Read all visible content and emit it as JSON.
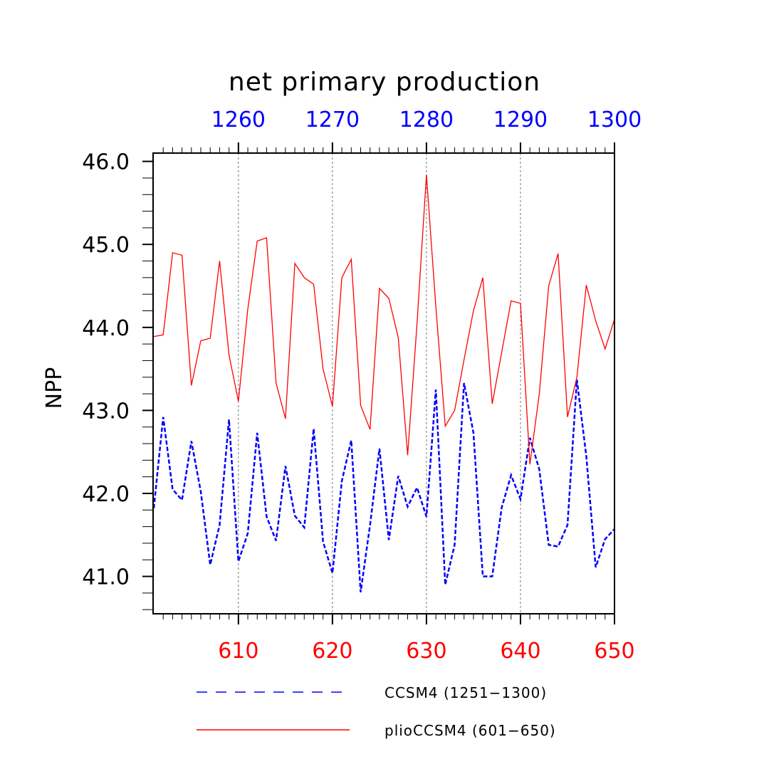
{
  "chart_data": {
    "type": "line",
    "title": "net primary production",
    "ylabel": "NPP",
    "ylim": [
      40.55,
      46.1
    ],
    "yticks": [
      41.0,
      42.0,
      43.0,
      44.0,
      45.0,
      46.0
    ],
    "ytick_labels": [
      "41.0",
      "42.0",
      "43.0",
      "44.0",
      "45.0",
      "46.0"
    ],
    "x_bottom": {
      "range": [
        601,
        650
      ],
      "ticks": [
        610,
        620,
        630,
        640,
        650
      ],
      "tick_labels": [
        "610",
        "620",
        "630",
        "640",
        "650"
      ],
      "color": "#ff0000"
    },
    "x_top": {
      "range": [
        1251,
        1300
      ],
      "ticks": [
        1260,
        1270,
        1280,
        1290,
        1300
      ],
      "tick_labels": [
        "1260",
        "1270",
        "1280",
        "1290",
        "1300"
      ],
      "color": "#0000ff"
    },
    "vertical_gridlines_at": [
      610,
      620,
      630,
      640
    ],
    "legend_placement": "bottom",
    "series": [
      {
        "name": "CCSM4 (1251−1300)",
        "axis": "top",
        "color": "#0000ff",
        "dash": "dashed",
        "x": [
          1251,
          1252,
          1253,
          1254,
          1255,
          1256,
          1257,
          1258,
          1259,
          1260,
          1261,
          1262,
          1263,
          1264,
          1265,
          1266,
          1267,
          1268,
          1269,
          1270,
          1271,
          1272,
          1273,
          1274,
          1275,
          1276,
          1277,
          1278,
          1279,
          1280,
          1281,
          1282,
          1283,
          1284,
          1285,
          1286,
          1287,
          1288,
          1289,
          1290,
          1291,
          1292,
          1293,
          1294,
          1295,
          1296,
          1297,
          1298,
          1299,
          1300
        ],
        "values": [
          41.82,
          42.92,
          42.05,
          41.92,
          42.63,
          42.02,
          41.14,
          41.62,
          42.89,
          41.18,
          41.52,
          42.73,
          41.72,
          41.43,
          42.33,
          41.73,
          41.59,
          42.78,
          41.42,
          41.04,
          42.15,
          42.64,
          40.81,
          41.62,
          42.54,
          41.44,
          42.21,
          41.84,
          42.07,
          41.72,
          43.25,
          40.9,
          41.38,
          43.33,
          42.73,
          41.0,
          41.0,
          41.83,
          42.22,
          41.93,
          42.67,
          42.29,
          41.38,
          41.36,
          41.62,
          43.37,
          42.45,
          41.11,
          41.45,
          41.57
        ]
      },
      {
        "name": "plioCCSM4 (601−650)",
        "axis": "bottom",
        "color": "#ff0000",
        "dash": "solid",
        "x": [
          601,
          602,
          603,
          604,
          605,
          606,
          607,
          608,
          609,
          610,
          611,
          612,
          613,
          614,
          615,
          616,
          617,
          618,
          619,
          620,
          621,
          622,
          623,
          624,
          625,
          626,
          627,
          628,
          629,
          630,
          631,
          632,
          633,
          634,
          635,
          636,
          637,
          638,
          639,
          640,
          641,
          642,
          643,
          644,
          645,
          646,
          647,
          648,
          649,
          650
        ],
        "values": [
          43.89,
          43.91,
          44.9,
          44.87,
          43.3,
          43.84,
          43.87,
          44.8,
          43.67,
          43.11,
          44.22,
          45.04,
          45.08,
          43.33,
          42.9,
          44.77,
          44.6,
          44.52,
          43.5,
          43.05,
          44.6,
          44.82,
          43.06,
          42.77,
          44.47,
          44.35,
          43.88,
          42.46,
          44.05,
          45.84,
          44.25,
          42.81,
          43.0,
          43.61,
          44.2,
          44.6,
          43.08,
          43.7,
          44.32,
          44.29,
          42.35,
          43.2,
          44.5,
          44.89,
          42.92,
          43.4,
          44.51,
          44.08,
          43.74,
          44.1
        ]
      }
    ]
  }
}
